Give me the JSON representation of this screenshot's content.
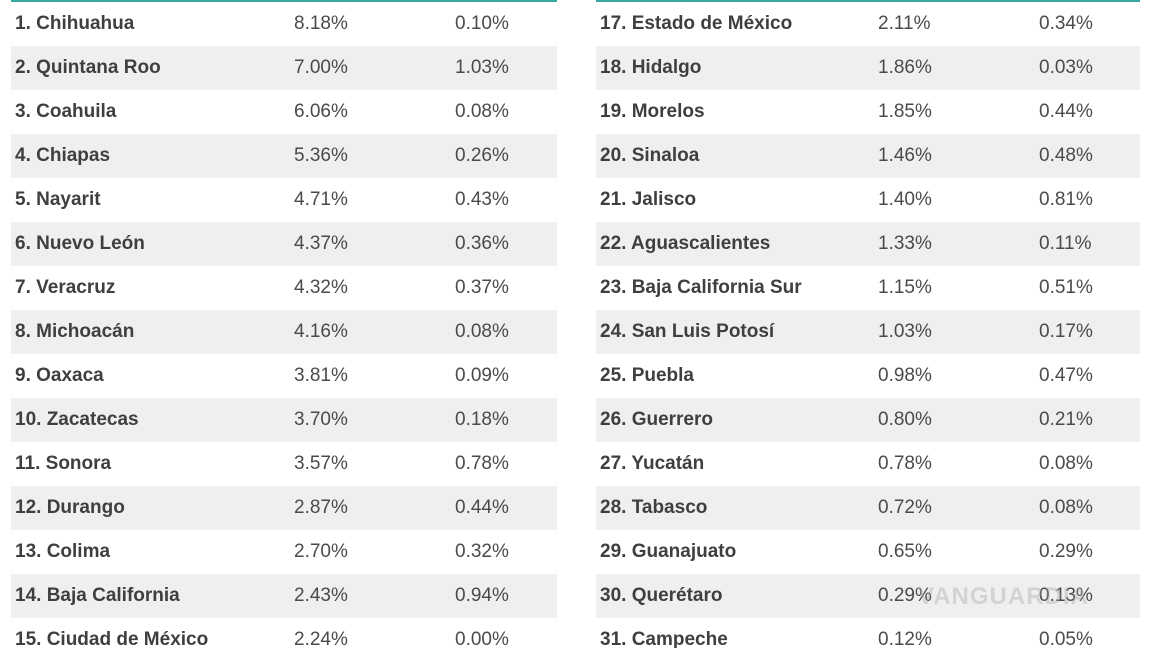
{
  "left_rows": [
    {
      "name": "1. Chihuahua",
      "v1": "8.18%",
      "v2": "0.10%"
    },
    {
      "name": "2. Quintana Roo",
      "v1": "7.00%",
      "v2": "1.03%"
    },
    {
      "name": "3. Coahuila",
      "v1": "6.06%",
      "v2": "0.08%"
    },
    {
      "name": "4. Chiapas",
      "v1": "5.36%",
      "v2": "0.26%"
    },
    {
      "name": "5. Nayarit",
      "v1": "4.71%",
      "v2": "0.43%"
    },
    {
      "name": "6. Nuevo León",
      "v1": "4.37%",
      "v2": "0.36%"
    },
    {
      "name": "7. Veracruz",
      "v1": "4.32%",
      "v2": "0.37%"
    },
    {
      "name": "8. Michoacán",
      "v1": "4.16%",
      "v2": "0.08%"
    },
    {
      "name": "9. Oaxaca",
      "v1": "3.81%",
      "v2": "0.09%"
    },
    {
      "name": "10. Zacatecas",
      "v1": "3.70%",
      "v2": "0.18%"
    },
    {
      "name": "11. Sonora",
      "v1": "3.57%",
      "v2": "0.78%"
    },
    {
      "name": "12. Durango",
      "v1": "2.87%",
      "v2": "0.44%"
    },
    {
      "name": "13. Colima",
      "v1": "2.70%",
      "v2": "0.32%"
    },
    {
      "name": "14. Baja California",
      "v1": "2.43%",
      "v2": "0.94%"
    },
    {
      "name": "15. Ciudad de México",
      "v1": "2.24%",
      "v2": "0.00%"
    }
  ],
  "right_rows": [
    {
      "name": "17. Estado de México",
      "v1": "2.11%",
      "v2": "0.34%"
    },
    {
      "name": "18. Hidalgo",
      "v1": "1.86%",
      "v2": "0.03%"
    },
    {
      "name": "19. Morelos",
      "v1": "1.85%",
      "v2": "0.44%"
    },
    {
      "name": "20. Sinaloa",
      "v1": "1.46%",
      "v2": "0.48%"
    },
    {
      "name": "21. Jalisco",
      "v1": "1.40%",
      "v2": "0.81%"
    },
    {
      "name": "22. Aguascalientes",
      "v1": "1.33%",
      "v2": "0.11%"
    },
    {
      "name": "23. Baja California Sur",
      "v1": "1.15%",
      "v2": "0.51%"
    },
    {
      "name": "24. San Luis Potosí",
      "v1": "1.03%",
      "v2": "0.17%"
    },
    {
      "name": "25. Puebla",
      "v1": "0.98%",
      "v2": "0.47%"
    },
    {
      "name": "26. Guerrero",
      "v1": "0.80%",
      "v2": "0.21%"
    },
    {
      "name": "27. Yucatán",
      "v1": "0.78%",
      "v2": "0.08%"
    },
    {
      "name": "28. Tabasco",
      "v1": "0.72%",
      "v2": "0.08%"
    },
    {
      "name": "29. Guanajuato",
      "v1": "0.65%",
      "v2": "0.29%"
    },
    {
      "name": "30. Querétaro",
      "v1": "0.29%",
      "v2": "0.13%"
    },
    {
      "name": "31. Campeche",
      "v1": "0.12%",
      "v2": "0.05%"
    }
  ],
  "watermark": "VANGUARDIA",
  "colors": {
    "rule": "#3aa9a1",
    "shade": "#efefef",
    "text": "#444444"
  }
}
